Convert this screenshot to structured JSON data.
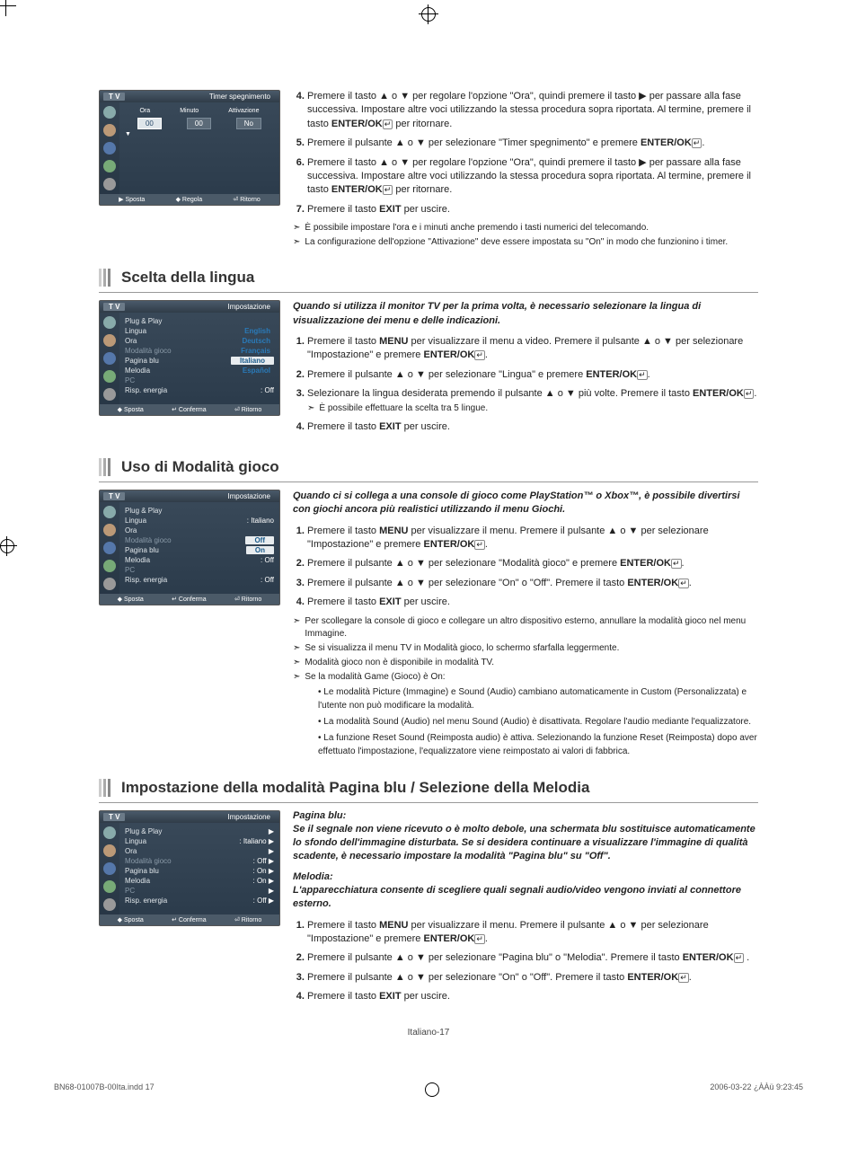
{
  "pageNumber": "Italiano-17",
  "footer": {
    "left": "BN68-01007B-00Ita.indd   17",
    "right": "2006-03-22   ¿ÀÀü 9:23:45"
  },
  "sectionTop": {
    "steps": [
      {
        "n": "4.",
        "text": "Premere il tasto ▲ o ▼ per regolare l'opzione \"Ora\", quindi premere il tasto ▶ per passare alla fase successiva. Impostare altre voci utilizzando la stessa procedura sopra riportata. Al termine, premere il tasto ",
        "bold": "ENTER/OK",
        "tail": " per ritornare."
      },
      {
        "n": "5.",
        "text": "Premere il pulsante ▲ o ▼ per selezionare \"Timer spegnimento\" e premere ",
        "bold": "ENTER/OK",
        "tail": "."
      },
      {
        "n": "6.",
        "text": "Premere il tasto ▲ o ▼ per regolare l'opzione \"Ora\", quindi premere il tasto ▶ per passare alla fase successiva. Impostare altre voci utilizzando la stessa procedura sopra riportata. Al termine, premere il tasto ",
        "bold": "ENTER/OK",
        "tail": " per ritornare."
      },
      {
        "n": "7.",
        "text": "Premere il tasto ",
        "bold": "EXIT",
        "tail": " per uscire."
      }
    ],
    "notes": [
      "È possibile impostare l'ora e i minuti anche premendo i tasti numerici del telecomando.",
      "La configurazione dell'opzione \"Attivazione\" deve essere impostata su \"On\" in modo che funzionino i timer."
    ],
    "menu": {
      "tv": "T V",
      "title": "Timer spegnimento",
      "head": {
        "h1": "Ora",
        "h2": "Minuto",
        "h3": "Attivazione"
      },
      "row": {
        "r1": "00",
        "r2": "00",
        "r3": "No"
      },
      "footer": {
        "f1": "▶ Sposta",
        "f2": "◆ Regola",
        "f3": "⏎ Ritorno"
      }
    }
  },
  "sectionLang": {
    "title": "Scelta della lingua",
    "intro": "Quando si utilizza il monitor TV per la prima volta, è necessario selezionare la lingua di visualizzazione dei menu e delle indicazioni.",
    "steps": [
      {
        "n": "1.",
        "text": "Premere il tasto ",
        "bold": "MENU",
        "mid": " per visualizzare il menu a video. Premere il pulsante ▲ o ▼ per selezionare \"Impostazione\" e premere ",
        "bold2": "ENTER/OK",
        "tail": "."
      },
      {
        "n": "2.",
        "text": "Premere il pulsante ▲ o ▼ per selezionare \"Lingua\" e premere ",
        "bold": "ENTER/OK",
        "tail": "."
      },
      {
        "n": "3.",
        "text": "Selezionare la lingua desiderata premendo il pulsante ▲ o ▼ più volte. Premere il tasto ",
        "bold": "ENTER/OK",
        "tail": ".",
        "sub": "È possibile effettuare la scelta tra 5 lingue."
      },
      {
        "n": "4.",
        "text": "Premere il tasto ",
        "bold": "EXIT",
        "tail": " per uscire."
      }
    ],
    "menu": {
      "tv": "T V",
      "title": "Impostazione",
      "items": [
        {
          "l": "Plug & Play",
          "r": ""
        },
        {
          "l": "Lingua",
          "r": "English",
          "opt": true
        },
        {
          "l": "Ora",
          "r": "Deutsch",
          "opt": true
        },
        {
          "l": "Modalità gioco",
          "dim": true,
          "r": "Français",
          "opt": true
        },
        {
          "l": "Pagina blu",
          "r": "Italiano",
          "sel": true
        },
        {
          "l": "Melodia",
          "r": "Español",
          "opt": true
        },
        {
          "l": "PC",
          "dim": true,
          "r": ""
        },
        {
          "l": "Risp. energia",
          "r": ": Off"
        }
      ],
      "footer": {
        "f1": "◆ Sposta",
        "f2": "↵ Conferma",
        "f3": "⏎ Ritorno"
      }
    }
  },
  "sectionGame": {
    "title": "Uso di Modalità gioco",
    "intro": "Quando ci si collega a una console di gioco come PlayStation™ o Xbox™, è possibile divertirsi con giochi ancora più realistici utilizzando il menu Giochi.",
    "steps": [
      {
        "n": "1.",
        "text": "Premere il tasto ",
        "bold": "MENU",
        "mid": " per visualizzare il menu. Premere il pulsante ▲ o ▼ per selezionare \"Impostazione\" e premere ",
        "bold2": "ENTER/OK",
        "tail": "."
      },
      {
        "n": "2.",
        "text": "Premere il pulsante ▲ o ▼ per selezionare \"Modalità gioco\" e premere ",
        "bold": "ENTER/OK",
        "tail": "."
      },
      {
        "n": "3.",
        "text": "Premere il pulsante ▲ o ▼ per selezionare \"On\" o \"Off\". Premere il tasto ",
        "bold": "ENTER/OK",
        "tail": "."
      },
      {
        "n": "4.",
        "text": "Premere il tasto ",
        "bold": "EXIT",
        "tail": " per uscire."
      }
    ],
    "notes": [
      "Per scollegare la console di gioco e collegare un altro dispositivo esterno, annullare la modalità gioco nel menu Immagine.",
      "Se si visualizza il menu TV in Modalità gioco, lo schermo sfarfalla leggermente.",
      "Modalità gioco non è disponibile in modalità TV.",
      "Se la modalità Game (Gioco) è On:"
    ],
    "bullets": [
      "Le modalità Picture (Immagine) e Sound (Audio) cambiano automaticamente in Custom (Personalizzata) e l'utente non può modificare la modalità.",
      "La modalità Sound (Audio) nel menu Sound (Audio) è disattivata. Regolare l'audio mediante l'equalizzatore.",
      "La funzione Reset Sound (Reimposta audio) è attiva. Selezionando la funzione Reset (Reimposta) dopo aver effettuato l'impostazione, l'equalizzatore viene reimpostato ai valori di fabbrica."
    ],
    "menu": {
      "tv": "T V",
      "title": "Impostazione",
      "items": [
        {
          "l": "Plug & Play",
          "r": ""
        },
        {
          "l": "Lingua",
          "r": ": Italiano"
        },
        {
          "l": "Ora",
          "r": ""
        },
        {
          "l": "Modalità gioco",
          "dim": true,
          "r": "Off",
          "sel": true
        },
        {
          "l": "Pagina blu",
          "r": "On",
          "sel": true
        },
        {
          "l": "Melodia",
          "r": ": Off"
        },
        {
          "l": "PC",
          "dim": true,
          "r": ""
        },
        {
          "l": "Risp. energia",
          "r": ": Off"
        }
      ],
      "footer": {
        "f1": "◆ Sposta",
        "f2": "↵ Conferma",
        "f3": "⏎ Ritorno"
      }
    }
  },
  "sectionBlue": {
    "title": "Impostazione della modalità Pagina blu / Selezione della Melodia",
    "label1": "Pagina blu:",
    "intro1": "Se il segnale non viene ricevuto o è molto debole, una schermata blu sostituisce automaticamente lo sfondo dell'immagine disturbata. Se si desidera continuare a visualizzare l'immagine di qualità scadente, è necessario impostare la modalità \"Pagina blu\" su \"Off\".",
    "label2": "Melodia:",
    "intro2": "L'apparecchiatura consente di scegliere quali segnali audio/video vengono inviati al connettore esterno.",
    "steps": [
      {
        "n": "1.",
        "text": "Premere il tasto ",
        "bold": "MENU",
        "mid": " per visualizzare il menu. Premere il pulsante ▲ o ▼ per selezionare \"Impostazione\" e premere ",
        "bold2": "ENTER/OK",
        "tail": "."
      },
      {
        "n": "2.",
        "text": "Premere il pulsante ▲ o ▼ per selezionare \"Pagina blu\" o \"Melodia\". Premere il tasto ",
        "bold": "ENTER/OK",
        "tail": " ."
      },
      {
        "n": "3.",
        "text": "Premere il pulsante ▲ o ▼ per selezionare \"On\" o \"Off\". Premere il tasto ",
        "bold": "ENTER/OK",
        "tail": "."
      },
      {
        "n": "4.",
        "text": "Premere il tasto ",
        "bold": "EXIT",
        "tail": " per uscire."
      }
    ],
    "menu": {
      "tv": "T V",
      "title": "Impostazione",
      "items": [
        {
          "l": "Plug & Play",
          "r": "▶"
        },
        {
          "l": "Lingua",
          "r": ": Italiano   ▶"
        },
        {
          "l": "Ora",
          "r": "▶"
        },
        {
          "l": "Modalità gioco",
          "dim": true,
          "r": ": Off          ▶"
        },
        {
          "l": "Pagina blu",
          "r": ": On           ▶"
        },
        {
          "l": "Melodia",
          "r": ": On           ▶"
        },
        {
          "l": "PC",
          "dim": true,
          "r": "▶"
        },
        {
          "l": "Risp. energia",
          "r": ": Off          ▶"
        }
      ],
      "footer": {
        "f1": "◆ Sposta",
        "f2": "↵ Conferma",
        "f3": "⏎ Ritorno"
      }
    }
  }
}
